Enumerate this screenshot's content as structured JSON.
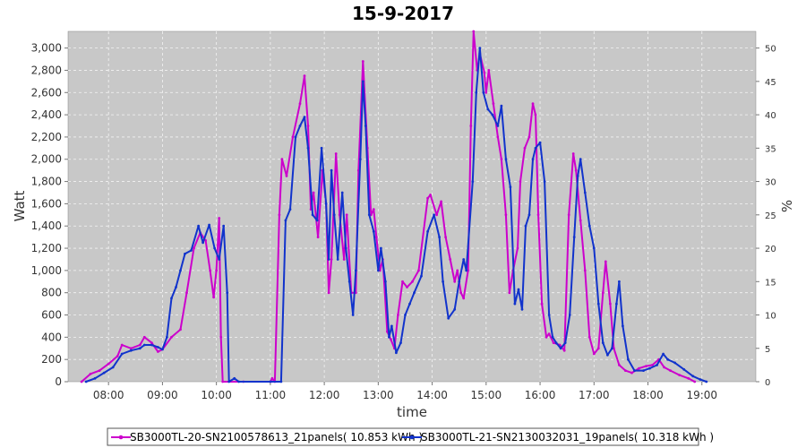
{
  "chart_data": {
    "type": "line",
    "title": "15-9-2017",
    "xlabel": "time",
    "ylabel": "Watt",
    "y2label": "%",
    "xlim": [
      "07:15",
      "20:00"
    ],
    "ylim": [
      0,
      3150
    ],
    "y2lim": [
      0,
      52.5
    ],
    "grid": true,
    "legend_position": "bottom",
    "x_ticks": [
      "08:00",
      "09:00",
      "10:00",
      "11:00",
      "12:00",
      "13:00",
      "14:00",
      "15:00",
      "16:00",
      "17:00",
      "18:00",
      "19:00"
    ],
    "y_ticks": [
      "0",
      "200",
      "400",
      "600",
      "800",
      "1,000",
      "1,200",
      "1,400",
      "1,600",
      "1,800",
      "2,000",
      "2,200",
      "2,400",
      "2,600",
      "2,800",
      "3,000"
    ],
    "y2_ticks": [
      "0",
      "5",
      "10",
      "15",
      "20",
      "25",
      "30",
      "35",
      "40",
      "45",
      "50"
    ],
    "series": [
      {
        "name": "SB3000TL-20-SN2100578613_21panels( 10.853 kWh )",
        "color": "#cc00cc",
        "points": [
          [
            "07:30",
            0
          ],
          [
            "07:40",
            70
          ],
          [
            "07:50",
            100
          ],
          [
            "08:00",
            160
          ],
          [
            "08:10",
            230
          ],
          [
            "08:15",
            330
          ],
          [
            "08:25",
            300
          ],
          [
            "08:35",
            330
          ],
          [
            "08:40",
            400
          ],
          [
            "08:48",
            350
          ],
          [
            "08:55",
            270
          ],
          [
            "09:00",
            290
          ],
          [
            "09:10",
            400
          ],
          [
            "09:20",
            470
          ],
          [
            "09:27",
            800
          ],
          [
            "09:35",
            1200
          ],
          [
            "09:42",
            1340
          ],
          [
            "09:48",
            1270
          ],
          [
            "09:53",
            1000
          ],
          [
            "09:57",
            760
          ],
          [
            "10:00",
            1000
          ],
          [
            "10:03",
            1470
          ],
          [
            "10:05",
            400
          ],
          [
            "10:07",
            0
          ],
          [
            "10:30",
            0
          ],
          [
            "11:00",
            0
          ],
          [
            "11:02",
            30
          ],
          [
            "11:05",
            0
          ],
          [
            "11:10",
            1500
          ],
          [
            "11:13",
            2000
          ],
          [
            "11:18",
            1850
          ],
          [
            "11:25",
            2200
          ],
          [
            "11:33",
            2500
          ],
          [
            "11:38",
            2750
          ],
          [
            "11:42",
            2300
          ],
          [
            "11:45",
            1550
          ],
          [
            "11:48",
            1700
          ],
          [
            "11:53",
            1300
          ],
          [
            "11:58",
            1900
          ],
          [
            "12:02",
            1600
          ],
          [
            "12:05",
            800
          ],
          [
            "12:08",
            1100
          ],
          [
            "12:13",
            2050
          ],
          [
            "12:17",
            1500
          ],
          [
            "12:22",
            1100
          ],
          [
            "12:25",
            1500
          ],
          [
            "12:30",
            800
          ],
          [
            "12:35",
            800
          ],
          [
            "12:38",
            1900
          ],
          [
            "12:43",
            2880
          ],
          [
            "12:48",
            2100
          ],
          [
            "12:52",
            1500
          ],
          [
            "12:55",
            1550
          ],
          [
            "12:58",
            1300
          ],
          [
            "13:02",
            1000
          ],
          [
            "13:05",
            1100
          ],
          [
            "13:10",
            450
          ],
          [
            "13:14",
            380
          ],
          [
            "13:18",
            300
          ],
          [
            "13:22",
            600
          ],
          [
            "13:27",
            900
          ],
          [
            "13:32",
            850
          ],
          [
            "13:38",
            900
          ],
          [
            "13:45",
            1000
          ],
          [
            "13:55",
            1650
          ],
          [
            "13:58",
            1680
          ],
          [
            "14:05",
            1500
          ],
          [
            "14:10",
            1620
          ],
          [
            "14:15",
            1300
          ],
          [
            "14:20",
            1100
          ],
          [
            "14:25",
            900
          ],
          [
            "14:28",
            1000
          ],
          [
            "14:32",
            800
          ],
          [
            "14:35",
            750
          ],
          [
            "14:40",
            1000
          ],
          [
            "14:43",
            2300
          ],
          [
            "14:46",
            3150
          ],
          [
            "14:50",
            2800
          ],
          [
            "14:53",
            2950
          ],
          [
            "14:58",
            2780
          ],
          [
            "15:00",
            2600
          ],
          [
            "15:03",
            2800
          ],
          [
            "15:08",
            2500
          ],
          [
            "15:13",
            2200
          ],
          [
            "15:17",
            2000
          ],
          [
            "15:22",
            1500
          ],
          [
            "15:26",
            800
          ],
          [
            "15:30",
            1000
          ],
          [
            "15:35",
            1200
          ],
          [
            "15:38",
            1800
          ],
          [
            "15:43",
            2100
          ],
          [
            "15:48",
            2200
          ],
          [
            "15:52",
            2500
          ],
          [
            "15:55",
            2400
          ],
          [
            "15:58",
            1500
          ],
          [
            "16:02",
            700
          ],
          [
            "16:07",
            400
          ],
          [
            "16:10",
            430
          ],
          [
            "16:15",
            350
          ],
          [
            "16:22",
            330
          ],
          [
            "16:27",
            280
          ],
          [
            "16:32",
            1500
          ],
          [
            "16:37",
            2050
          ],
          [
            "16:40",
            1900
          ],
          [
            "16:45",
            1450
          ],
          [
            "16:50",
            1000
          ],
          [
            "16:55",
            400
          ],
          [
            "17:00",
            250
          ],
          [
            "17:05",
            300
          ],
          [
            "17:10",
            800
          ],
          [
            "17:13",
            1080
          ],
          [
            "17:18",
            700
          ],
          [
            "17:22",
            300
          ],
          [
            "17:28",
            150
          ],
          [
            "17:35",
            100
          ],
          [
            "17:42",
            80
          ],
          [
            "17:50",
            120
          ],
          [
            "17:58",
            140
          ],
          [
            "18:05",
            150
          ],
          [
            "18:12",
            200
          ],
          [
            "18:18",
            130
          ],
          [
            "18:25",
            100
          ],
          [
            "18:35",
            60
          ],
          [
            "18:45",
            30
          ],
          [
            "18:52",
            0
          ]
        ]
      },
      {
        "name": "SB3000TL-21-SN2130032031_19panels( 10.318 kWh )",
        "color": "#1133cc",
        "points": [
          [
            "07:35",
            0
          ],
          [
            "07:45",
            30
          ],
          [
            "07:55",
            80
          ],
          [
            "08:05",
            130
          ],
          [
            "08:15",
            250
          ],
          [
            "08:25",
            280
          ],
          [
            "08:35",
            300
          ],
          [
            "08:40",
            330
          ],
          [
            "08:48",
            330
          ],
          [
            "08:55",
            310
          ],
          [
            "09:00",
            290
          ],
          [
            "09:05",
            400
          ],
          [
            "09:10",
            750
          ],
          [
            "09:15",
            850
          ],
          [
            "09:20",
            1000
          ],
          [
            "09:25",
            1150
          ],
          [
            "09:32",
            1180
          ],
          [
            "09:40",
            1400
          ],
          [
            "09:45",
            1250
          ],
          [
            "09:52",
            1410
          ],
          [
            "09:58",
            1200
          ],
          [
            "10:03",
            1100
          ],
          [
            "10:08",
            1400
          ],
          [
            "10:12",
            800
          ],
          [
            "10:14",
            0
          ],
          [
            "10:20",
            30
          ],
          [
            "10:25",
            0
          ],
          [
            "11:00",
            0
          ],
          [
            "11:12",
            0
          ],
          [
            "11:17",
            1450
          ],
          [
            "11:22",
            1550
          ],
          [
            "11:28",
            2200
          ],
          [
            "11:33",
            2300
          ],
          [
            "11:38",
            2380
          ],
          [
            "11:42",
            2100
          ],
          [
            "11:47",
            1500
          ],
          [
            "11:52",
            1450
          ],
          [
            "11:57",
            2100
          ],
          [
            "12:02",
            1600
          ],
          [
            "12:05",
            1100
          ],
          [
            "12:08",
            1900
          ],
          [
            "12:11",
            1500
          ],
          [
            "12:15",
            1100
          ],
          [
            "12:20",
            1700
          ],
          [
            "12:24",
            1200
          ],
          [
            "12:28",
            900
          ],
          [
            "12:32",
            600
          ],
          [
            "12:35",
            1000
          ],
          [
            "12:40",
            2000
          ],
          [
            "12:43",
            2700
          ],
          [
            "12:46",
            2300
          ],
          [
            "12:50",
            1500
          ],
          [
            "12:55",
            1350
          ],
          [
            "13:00",
            1000
          ],
          [
            "13:03",
            1200
          ],
          [
            "13:08",
            900
          ],
          [
            "13:12",
            400
          ],
          [
            "13:15",
            500
          ],
          [
            "13:20",
            260
          ],
          [
            "13:25",
            350
          ],
          [
            "13:30",
            600
          ],
          [
            "13:35",
            700
          ],
          [
            "13:40",
            800
          ],
          [
            "13:48",
            950
          ],
          [
            "13:55",
            1350
          ],
          [
            "14:02",
            1500
          ],
          [
            "14:08",
            1300
          ],
          [
            "14:12",
            900
          ],
          [
            "14:18",
            570
          ],
          [
            "14:25",
            650
          ],
          [
            "14:30",
            900
          ],
          [
            "14:35",
            1100
          ],
          [
            "14:38",
            1000
          ],
          [
            "14:45",
            1800
          ],
          [
            "14:49",
            2600
          ],
          [
            "14:53",
            3000
          ],
          [
            "14:57",
            2600
          ],
          [
            "15:02",
            2450
          ],
          [
            "15:07",
            2400
          ],
          [
            "15:13",
            2300
          ],
          [
            "15:17",
            2480
          ],
          [
            "15:22",
            2000
          ],
          [
            "15:27",
            1750
          ],
          [
            "15:32",
            700
          ],
          [
            "15:36",
            830
          ],
          [
            "15:40",
            650
          ],
          [
            "15:44",
            1400
          ],
          [
            "15:48",
            1500
          ],
          [
            "15:52",
            2000
          ],
          [
            "15:55",
            2100
          ],
          [
            "16:00",
            2150
          ],
          [
            "16:05",
            1800
          ],
          [
            "16:10",
            600
          ],
          [
            "16:14",
            400
          ],
          [
            "16:18",
            350
          ],
          [
            "16:23",
            300
          ],
          [
            "16:28",
            350
          ],
          [
            "16:33",
            600
          ],
          [
            "16:38",
            1300
          ],
          [
            "16:42",
            1850
          ],
          [
            "16:45",
            2000
          ],
          [
            "16:50",
            1700
          ],
          [
            "16:55",
            1400
          ],
          [
            "17:00",
            1200
          ],
          [
            "17:05",
            700
          ],
          [
            "17:10",
            350
          ],
          [
            "17:15",
            240
          ],
          [
            "17:20",
            300
          ],
          [
            "17:25",
            700
          ],
          [
            "17:28",
            900
          ],
          [
            "17:32",
            500
          ],
          [
            "17:38",
            200
          ],
          [
            "17:45",
            100
          ],
          [
            "17:55",
            100
          ],
          [
            "18:02",
            120
          ],
          [
            "18:10",
            150
          ],
          [
            "18:17",
            250
          ],
          [
            "18:22",
            200
          ],
          [
            "18:30",
            170
          ],
          [
            "18:40",
            110
          ],
          [
            "18:50",
            50
          ],
          [
            "18:58",
            20
          ],
          [
            "19:05",
            0
          ]
        ]
      }
    ]
  },
  "legend": {
    "items": [
      {
        "label": "SB3000TL-20-SN2100578613_21panels( 10.853 kWh )",
        "color": "#cc00cc"
      },
      {
        "label": "SB3000TL-21-SN2130032031_19panels( 10.318 kWh )",
        "color": "#1133cc"
      }
    ]
  }
}
